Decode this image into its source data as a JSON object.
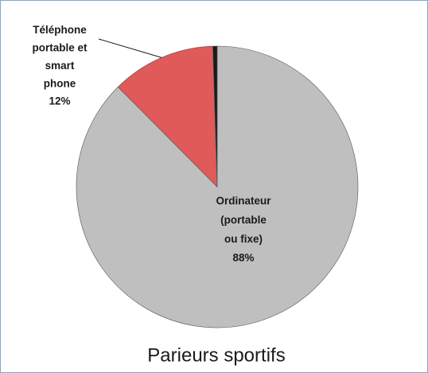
{
  "chart_data": {
    "type": "pie",
    "title": "Parieurs sportifs",
    "categories": [
      "Ordinateur (portable ou fixe)",
      "Téléphone portable et smart phone",
      null
    ],
    "values": [
      88,
      12,
      0.5
    ],
    "value_labels": [
      "88%",
      "12%",
      null
    ],
    "colors": [
      "#bfbfbf",
      "#e05a5a",
      "#1a1a1a"
    ]
  }
}
